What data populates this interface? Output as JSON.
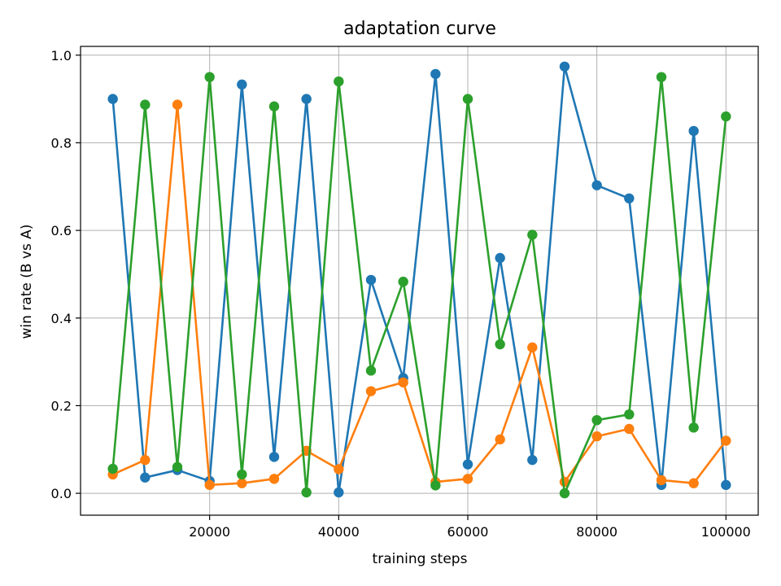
{
  "chart_data": {
    "type": "line",
    "title": "adaptation curve",
    "xlabel": "training steps",
    "ylabel": "win rate (B vs A)",
    "xlim": [
      0,
      105000
    ],
    "ylim": [
      -0.05,
      1.02
    ],
    "xticks": [
      20000,
      40000,
      60000,
      80000,
      100000
    ],
    "xtick_labels": [
      "20000",
      "40000",
      "60000",
      "80000",
      "100000"
    ],
    "yticks": [
      0.0,
      0.2,
      0.4,
      0.6,
      0.8,
      1.0
    ],
    "ytick_labels": [
      "0.0",
      "0.2",
      "0.4",
      "0.6",
      "0.8",
      "1.0"
    ],
    "grid": true,
    "x": [
      5000,
      10000,
      15000,
      20000,
      25000,
      30000,
      35000,
      40000,
      45000,
      50000,
      55000,
      60000,
      65000,
      70000,
      75000,
      80000,
      85000,
      90000,
      95000,
      100000
    ],
    "series": [
      {
        "color": "#1f77b4",
        "values": [
          0.9,
          0.036,
          0.053,
          0.028,
          0.933,
          0.083,
          0.9,
          0.002,
          0.487,
          0.263,
          0.957,
          0.066,
          0.537,
          0.076,
          0.974,
          0.703,
          0.673,
          0.019,
          0.827,
          0.019
        ]
      },
      {
        "color": "#ff7f0e",
        "values": [
          0.043,
          0.076,
          0.887,
          0.019,
          0.023,
          0.033,
          0.097,
          0.055,
          0.233,
          0.253,
          0.026,
          0.033,
          0.123,
          0.333,
          0.026,
          0.13,
          0.147,
          0.03,
          0.023,
          0.12
        ]
      },
      {
        "color": "#2ca02c",
        "values": [
          0.056,
          0.887,
          0.06,
          0.95,
          0.043,
          0.883,
          0.002,
          0.94,
          0.28,
          0.483,
          0.018,
          0.9,
          0.34,
          0.59,
          0.0,
          0.167,
          0.18,
          0.95,
          0.15,
          0.86
        ]
      }
    ]
  }
}
